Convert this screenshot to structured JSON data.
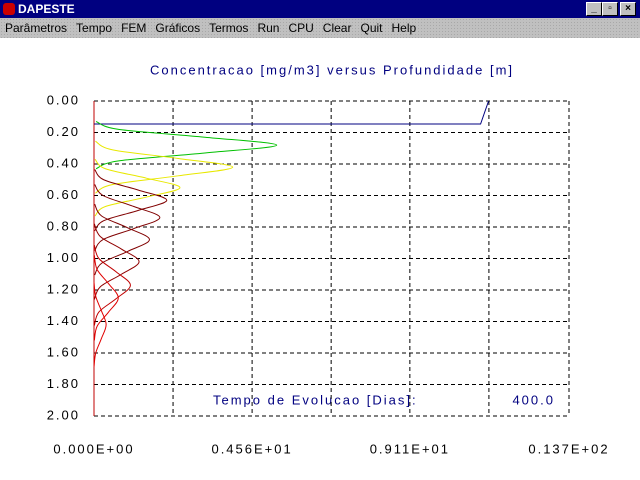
{
  "window": {
    "title": "DAPESTE",
    "menu": [
      "Parâmetros",
      "Tempo",
      "FEM",
      "Gráficos",
      "Termos",
      "Run",
      "CPU",
      "Clear",
      "Quit",
      "Help"
    ]
  },
  "chart_data": {
    "type": "line",
    "title": "Concentracao [mg/m3] versus Profundidade [m]",
    "annotation": "Tempo de Evolucao [Dias]:",
    "annotation_value": "400.0",
    "xlim": [
      0,
      13.7
    ],
    "xticks": [
      {
        "value": 0,
        "label": "0.000E+00"
      },
      {
        "value": 4.56,
        "label": "0.456E+01"
      },
      {
        "value": 9.11,
        "label": "0.911E+01"
      },
      {
        "value": 13.7,
        "label": "0.137E+02"
      }
    ],
    "xgrid": [
      2.28,
      6.84,
      11.39
    ],
    "ylim": [
      0,
      2
    ],
    "y_inverted": true,
    "yticks": [
      {
        "value": 0,
        "label": "0.00"
      },
      {
        "value": 0.2,
        "label": "0.20"
      },
      {
        "value": 0.4,
        "label": "0.40"
      },
      {
        "value": 0.6,
        "label": "0.60"
      },
      {
        "value": 0.8,
        "label": "0.80"
      },
      {
        "value": 1.0,
        "label": "1.00"
      },
      {
        "value": 1.2,
        "label": "1.20"
      },
      {
        "value": 1.4,
        "label": "1.40"
      },
      {
        "value": 1.6,
        "label": "1.60"
      },
      {
        "value": 1.8,
        "label": "1.80"
      },
      {
        "value": 2.0,
        "label": "2.00"
      }
    ],
    "grid": true,
    "series": [
      {
        "color": "#000080",
        "smooth": false,
        "x": [
          0,
          11.15,
          11.38
        ],
        "y": [
          0.146,
          0.146,
          0
        ]
      },
      {
        "color": "#00c000",
        "x": [
          0.06,
          0.71,
          3.2,
          5.27,
          3.2,
          0.71,
          0.06
        ],
        "y": [
          0.13,
          0.18,
          0.23,
          0.28,
          0.33,
          0.38,
          0.43
        ]
      },
      {
        "color": "#e8e800",
        "x": [
          0.04,
          0.54,
          2.43,
          4.0,
          2.43,
          0.54,
          0.04
        ],
        "y": [
          0.255,
          0.31,
          0.365,
          0.42,
          0.475,
          0.53,
          0.585
        ]
      },
      {
        "color": "#e8e800",
        "x": [
          0.03,
          0.33,
          1.51,
          2.48,
          1.51,
          0.33,
          0.03
        ],
        "y": [
          0.37,
          0.43,
          0.49,
          0.55,
          0.61,
          0.67,
          0.73
        ]
      },
      {
        "color": "#800000",
        "x": [
          0.02,
          0.28,
          1.27,
          2.1,
          1.27,
          0.28,
          0.02
        ],
        "y": [
          0.435,
          0.5,
          0.565,
          0.63,
          0.695,
          0.76,
          0.825
        ]
      },
      {
        "color": "#800000",
        "x": [
          0.02,
          0.26,
          1.15,
          1.9,
          1.15,
          0.26,
          0.02
        ],
        "y": [
          0.53,
          0.6,
          0.67,
          0.74,
          0.81,
          0.88,
          0.95
        ]
      },
      {
        "color": "#800000",
        "x": [
          0.02,
          0.22,
          0.97,
          1.6,
          0.97,
          0.22,
          0.02
        ],
        "y": [
          0.655,
          0.73,
          0.805,
          0.88,
          0.955,
          1.03,
          1.105
        ]
      },
      {
        "color": "#900000",
        "x": [
          0.01,
          0.18,
          0.79,
          1.3,
          0.79,
          0.18,
          0.01
        ],
        "y": [
          0.78,
          0.86,
          0.94,
          1.02,
          1.1,
          1.18,
          1.26
        ]
      },
      {
        "color": "#c00000",
        "x": [
          0.01,
          0.14,
          0.64,
          1.05,
          0.64,
          0.14,
          0.01
        ],
        "y": [
          0.915,
          1.0,
          1.085,
          1.17,
          1.255,
          1.34,
          1.425
        ]
      },
      {
        "color": "#e00000",
        "x": [
          0.01,
          0.09,
          0.42,
          0.7,
          0.42,
          0.09,
          0.01
        ],
        "y": [
          0.98,
          1.07,
          1.16,
          1.25,
          1.34,
          1.43,
          1.52
        ]
      },
      {
        "color": "#e00000",
        "x": [
          0,
          0.05,
          0.21,
          0.35,
          0.21,
          0.05,
          0
        ],
        "y": [
          1.15,
          1.24,
          1.33,
          1.42,
          1.51,
          1.6,
          1.69
        ]
      }
    ]
  }
}
